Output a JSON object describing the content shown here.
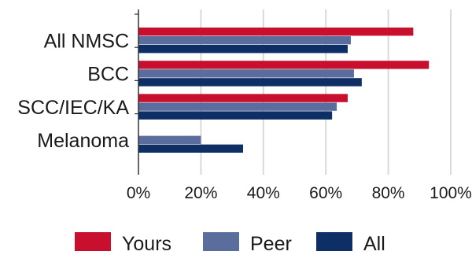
{
  "chart_data": {
    "type": "bar",
    "orientation": "horizontal",
    "categories": [
      "All NMSC",
      "BCC",
      "SCC/IEC/KA",
      "Melanoma"
    ],
    "series": [
      {
        "name": "Yours",
        "color": "#c8102e",
        "values": [
          88,
          93,
          67,
          null
        ]
      },
      {
        "name": "Peer",
        "color": "#5a6d9c",
        "values": [
          68,
          69,
          63.5,
          20
        ]
      },
      {
        "name": "All",
        "color": "#0d2f66",
        "values": [
          67,
          71.5,
          62,
          33.5
        ]
      }
    ],
    "xlim": [
      0,
      100
    ],
    "x_ticks": [
      0,
      20,
      40,
      60,
      80,
      100
    ],
    "tick_format": "{v}%",
    "grid": "vertical",
    "legend_position": "bottom",
    "title": "",
    "xlabel": "",
    "ylabel": ""
  }
}
